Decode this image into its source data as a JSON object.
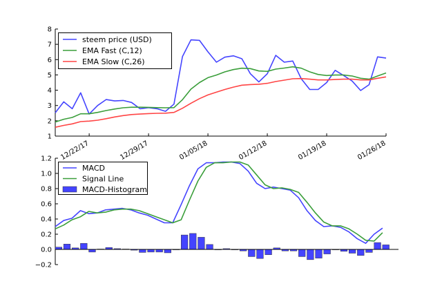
{
  "chart_data": [
    {
      "type": "line",
      "title": "",
      "xlabel": "",
      "ylabel": "",
      "ylim": [
        1,
        8
      ],
      "yticks": [
        "1",
        "2",
        "3",
        "4",
        "5",
        "6",
        "7",
        "8"
      ],
      "xtick_labels": [
        "12/22/17",
        "12/29/17",
        "01/05/18",
        "01/12/18",
        "01/19/18",
        "01/26/18"
      ],
      "xtick_index": [
        4,
        11,
        18,
        25,
        32,
        39
      ],
      "x_start": "12/18/17",
      "x_end": "01/26/18",
      "legend_position": "top-left",
      "series": [
        {
          "name": "steem price (USD)",
          "color": "#4444ff",
          "values": [
            2.52,
            3.24,
            2.79,
            3.83,
            2.44,
            3.0,
            3.39,
            3.3,
            3.33,
            3.2,
            2.79,
            2.86,
            2.79,
            2.62,
            3.09,
            6.2,
            7.29,
            7.26,
            6.51,
            5.83,
            6.16,
            6.25,
            6.06,
            5.08,
            4.54,
            5.08,
            6.28,
            5.83,
            5.91,
            4.75,
            4.05,
            4.05,
            4.5,
            5.3,
            4.96,
            4.6,
            3.98,
            4.36,
            6.18,
            6.1
          ]
        },
        {
          "name": "EMA Fast (C,12)",
          "color": "#3a9e3a",
          "values": [
            1.92,
            2.1,
            2.22,
            2.46,
            2.46,
            2.55,
            2.67,
            2.77,
            2.85,
            2.89,
            2.89,
            2.88,
            2.86,
            2.85,
            2.86,
            3.38,
            4.07,
            4.5,
            4.82,
            4.99,
            5.2,
            5.35,
            5.44,
            5.41,
            5.26,
            5.23,
            5.38,
            5.45,
            5.53,
            5.44,
            5.2,
            5.03,
            4.96,
            4.99,
            4.99,
            4.93,
            4.78,
            4.72,
            4.93,
            5.13
          ]
        },
        {
          "name": "EMA Slow (C,26)",
          "color": "#ff4444",
          "values": [
            1.58,
            1.7,
            1.8,
            1.95,
            1.98,
            2.04,
            2.14,
            2.25,
            2.34,
            2.41,
            2.44,
            2.47,
            2.49,
            2.5,
            2.55,
            2.82,
            3.15,
            3.45,
            3.69,
            3.87,
            4.05,
            4.2,
            4.33,
            4.37,
            4.39,
            4.45,
            4.57,
            4.66,
            4.75,
            4.76,
            4.72,
            4.67,
            4.67,
            4.7,
            4.72,
            4.72,
            4.67,
            4.67,
            4.78,
            4.87
          ]
        }
      ]
    },
    {
      "type": "line",
      "title": "",
      "xlabel": "",
      "ylabel": "",
      "ylim": [
        -0.2,
        1.2
      ],
      "yticks": [
        "−0.2",
        "0.0",
        "0.2",
        "0.4",
        "0.6",
        "0.8",
        "1.0",
        "1.2"
      ],
      "legend_position": "top-left",
      "series": [
        {
          "name": "MACD",
          "color": "#4444ff",
          "kind": "line",
          "values": [
            0.3,
            0.38,
            0.41,
            0.51,
            0.47,
            0.48,
            0.52,
            0.53,
            0.54,
            0.52,
            0.48,
            0.45,
            0.4,
            0.35,
            0.35,
            0.59,
            0.84,
            1.06,
            1.14,
            1.14,
            1.15,
            1.15,
            1.13,
            1.03,
            0.87,
            0.8,
            0.82,
            0.8,
            0.78,
            0.68,
            0.51,
            0.38,
            0.3,
            0.31,
            0.29,
            0.23,
            0.14,
            0.08,
            0.2,
            0.28
          ]
        },
        {
          "name": "Signal Line",
          "color": "#3a9e3a",
          "kind": "line",
          "values": [
            0.27,
            0.32,
            0.39,
            0.43,
            0.5,
            0.48,
            0.49,
            0.52,
            0.53,
            0.53,
            0.51,
            0.47,
            0.43,
            0.39,
            0.35,
            0.39,
            0.65,
            0.9,
            1.08,
            1.14,
            1.14,
            1.15,
            1.15,
            1.11,
            0.98,
            0.85,
            0.8,
            0.81,
            0.79,
            0.75,
            0.62,
            0.48,
            0.36,
            0.31,
            0.31,
            0.27,
            0.2,
            0.12,
            0.11,
            0.22
          ]
        },
        {
          "name": "MACD-Histogram",
          "color": "#4444ff",
          "kind": "bar",
          "values": [
            0.03,
            0.07,
            0.02,
            0.08,
            -0.035,
            0.005,
            0.025,
            0.01,
            0.005,
            -0.01,
            -0.04,
            -0.035,
            -0.035,
            -0.045,
            -0.005,
            0.19,
            0.21,
            0.16,
            0.065,
            -0.005,
            0.01,
            0.0,
            -0.02,
            -0.095,
            -0.12,
            -0.07,
            0.02,
            -0.02,
            -0.02,
            -0.095,
            -0.135,
            -0.115,
            -0.06,
            0.0,
            -0.025,
            -0.05,
            -0.08,
            -0.04,
            0.09,
            0.06
          ]
        }
      ]
    }
  ]
}
